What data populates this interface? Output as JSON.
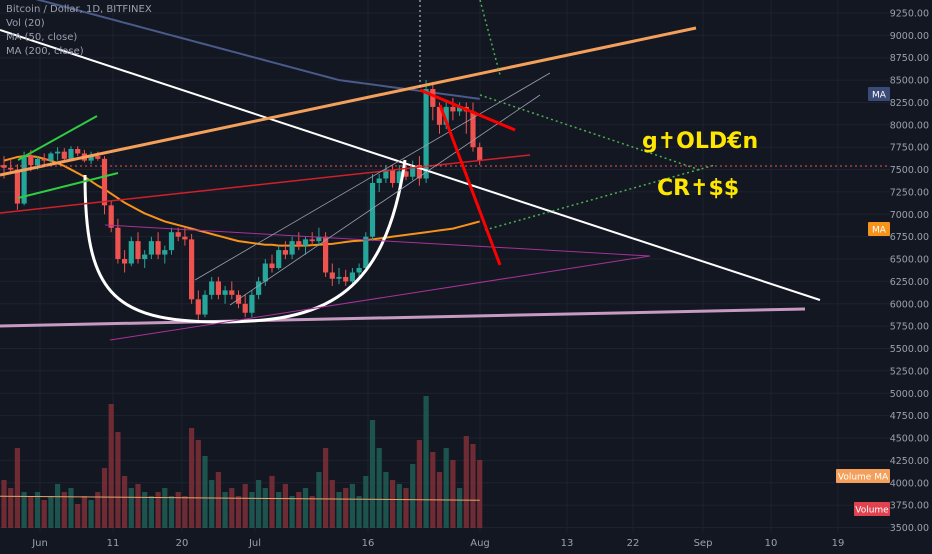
{
  "legend": {
    "symbol": "Bitcoin / Dollar, 1D, BITFINEX",
    "vol": "Vol (20)",
    "ma50": "MA (50, close)",
    "ma200": "MA (200, close)"
  },
  "annotations": {
    "golden_line1": "g✝OLD€n",
    "golden_line2": "CR✝$$"
  },
  "tags": {
    "ma200": "MA",
    "ma50": "MA",
    "volume_ma": "Volume MA",
    "volume": "Volume"
  },
  "colors": {
    "background": "#131722",
    "up": "#26a69a",
    "down": "#ef5350",
    "ma50": "#f7931a",
    "ma200": "#4a5a8a",
    "trend_white": "#ffffff",
    "trend_orange": "#f5a05a",
    "support_pink": "#c79ac2",
    "wedge_magenta": "#a8329a",
    "flag_red": "#ff0000",
    "dotted_green": "#4caf50",
    "annotation_yellow": "#ffe600"
  },
  "chart_data": {
    "type": "candlestick",
    "title": "Bitcoin / Dollar, 1D, BITFINEX",
    "y_axis": {
      "ticks": [
        3500,
        3750,
        4000,
        4250,
        4500,
        4750,
        5000,
        5250,
        5500,
        5750,
        6000,
        6250,
        6500,
        6750,
        7000,
        7250,
        7500,
        7750,
        8000,
        8250,
        8500,
        8750,
        9000,
        9250
      ],
      "range": [
        3450,
        9350
      ]
    },
    "x_axis": {
      "tick_labels": [
        "Jun",
        "11",
        "20",
        "Jul",
        "16",
        "Aug",
        "13",
        "22",
        "Sep",
        "10",
        "19"
      ]
    },
    "candles": [
      {
        "o": 7550,
        "h": 7650,
        "l": 7400,
        "c": 7520
      },
      {
        "o": 7520,
        "h": 7620,
        "l": 7450,
        "c": 7500
      },
      {
        "o": 7500,
        "h": 7560,
        "l": 7050,
        "c": 7120
      },
      {
        "o": 7120,
        "h": 7700,
        "l": 7100,
        "c": 7650
      },
      {
        "o": 7650,
        "h": 7720,
        "l": 7480,
        "c": 7550
      },
      {
        "o": 7550,
        "h": 7650,
        "l": 7500,
        "c": 7620
      },
      {
        "o": 7620,
        "h": 7680,
        "l": 7560,
        "c": 7600
      },
      {
        "o": 7600,
        "h": 7700,
        "l": 7580,
        "c": 7680
      },
      {
        "o": 7680,
        "h": 7750,
        "l": 7600,
        "c": 7700
      },
      {
        "o": 7700,
        "h": 7740,
        "l": 7580,
        "c": 7620
      },
      {
        "o": 7620,
        "h": 7760,
        "l": 7600,
        "c": 7730
      },
      {
        "o": 7730,
        "h": 7760,
        "l": 7650,
        "c": 7680
      },
      {
        "o": 7680,
        "h": 7720,
        "l": 7580,
        "c": 7600
      },
      {
        "o": 7600,
        "h": 7700,
        "l": 7560,
        "c": 7650
      },
      {
        "o": 7650,
        "h": 7700,
        "l": 7600,
        "c": 7620
      },
      {
        "o": 7620,
        "h": 7650,
        "l": 7000,
        "c": 7100
      },
      {
        "o": 7100,
        "h": 7150,
        "l": 6800,
        "c": 6850
      },
      {
        "o": 6850,
        "h": 6950,
        "l": 6450,
        "c": 6500
      },
      {
        "o": 6500,
        "h": 6600,
        "l": 6350,
        "c": 6450
      },
      {
        "o": 6450,
        "h": 6750,
        "l": 6420,
        "c": 6700
      },
      {
        "o": 6700,
        "h": 6800,
        "l": 6450,
        "c": 6500
      },
      {
        "o": 6500,
        "h": 6600,
        "l": 6400,
        "c": 6550
      },
      {
        "o": 6550,
        "h": 6750,
        "l": 6500,
        "c": 6700
      },
      {
        "o": 6700,
        "h": 6800,
        "l": 6500,
        "c": 6550
      },
      {
        "o": 6550,
        "h": 6650,
        "l": 6450,
        "c": 6600
      },
      {
        "o": 6600,
        "h": 6850,
        "l": 6550,
        "c": 6800
      },
      {
        "o": 6800,
        "h": 6850,
        "l": 6700,
        "c": 6750
      },
      {
        "o": 6750,
        "h": 6850,
        "l": 6650,
        "c": 6720
      },
      {
        "o": 6720,
        "h": 6780,
        "l": 6000,
        "c": 6050
      },
      {
        "o": 6050,
        "h": 6150,
        "l": 5780,
        "c": 5880
      },
      {
        "o": 5880,
        "h": 6150,
        "l": 5850,
        "c": 6100
      },
      {
        "o": 6100,
        "h": 6300,
        "l": 6050,
        "c": 6250
      },
      {
        "o": 6250,
        "h": 6300,
        "l": 6050,
        "c": 6100
      },
      {
        "o": 6100,
        "h": 6200,
        "l": 6000,
        "c": 6150
      },
      {
        "o": 6150,
        "h": 6250,
        "l": 6050,
        "c": 6100
      },
      {
        "o": 6100,
        "h": 6150,
        "l": 5950,
        "c": 6000
      },
      {
        "o": 6000,
        "h": 6100,
        "l": 5850,
        "c": 5900
      },
      {
        "o": 5900,
        "h": 6150,
        "l": 5850,
        "c": 6100
      },
      {
        "o": 6100,
        "h": 6300,
        "l": 6050,
        "c": 6250
      },
      {
        "o": 6250,
        "h": 6500,
        "l": 6200,
        "c": 6450
      },
      {
        "o": 6450,
        "h": 6550,
        "l": 6350,
        "c": 6400
      },
      {
        "o": 6400,
        "h": 6650,
        "l": 6380,
        "c": 6600
      },
      {
        "o": 6600,
        "h": 6700,
        "l": 6500,
        "c": 6550
      },
      {
        "o": 6550,
        "h": 6750,
        "l": 6500,
        "c": 6700
      },
      {
        "o": 6700,
        "h": 6800,
        "l": 6600,
        "c": 6650
      },
      {
        "o": 6650,
        "h": 6750,
        "l": 6550,
        "c": 6720
      },
      {
        "o": 6720,
        "h": 6800,
        "l": 6650,
        "c": 6700
      },
      {
        "o": 6700,
        "h": 6850,
        "l": 6650,
        "c": 6750
      },
      {
        "o": 6750,
        "h": 6800,
        "l": 6300,
        "c": 6350
      },
      {
        "o": 6350,
        "h": 6450,
        "l": 6200,
        "c": 6280
      },
      {
        "o": 6280,
        "h": 6400,
        "l": 6220,
        "c": 6300
      },
      {
        "o": 6300,
        "h": 6380,
        "l": 6200,
        "c": 6250
      },
      {
        "o": 6250,
        "h": 6400,
        "l": 6230,
        "c": 6350
      },
      {
        "o": 6350,
        "h": 6450,
        "l": 6300,
        "c": 6400
      },
      {
        "o": 6400,
        "h": 6800,
        "l": 6380,
        "c": 6750
      },
      {
        "o": 6750,
        "h": 7450,
        "l": 6700,
        "c": 7350
      },
      {
        "o": 7350,
        "h": 7450,
        "l": 7250,
        "c": 7400
      },
      {
        "o": 7400,
        "h": 7550,
        "l": 7350,
        "c": 7500
      },
      {
        "o": 7500,
        "h": 7550,
        "l": 7300,
        "c": 7350
      },
      {
        "o": 7350,
        "h": 7550,
        "l": 7300,
        "c": 7480
      },
      {
        "o": 7480,
        "h": 7550,
        "l": 7380,
        "c": 7420
      },
      {
        "o": 7420,
        "h": 7600,
        "l": 7380,
        "c": 7550
      },
      {
        "o": 7550,
        "h": 7650,
        "l": 7320,
        "c": 7400
      },
      {
        "o": 7400,
        "h": 8500,
        "l": 7350,
        "c": 8400
      },
      {
        "o": 8400,
        "h": 8480,
        "l": 8050,
        "c": 8200
      },
      {
        "o": 8200,
        "h": 8250,
        "l": 7900,
        "c": 8000
      },
      {
        "o": 8000,
        "h": 8280,
        "l": 7950,
        "c": 8200
      },
      {
        "o": 8200,
        "h": 8300,
        "l": 8050,
        "c": 8150
      },
      {
        "o": 8150,
        "h": 8250,
        "l": 8100,
        "c": 8200
      },
      {
        "o": 8200,
        "h": 8250,
        "l": 7900,
        "c": 8150
      },
      {
        "o": 8150,
        "h": 8250,
        "l": 7700,
        "c": 7750
      },
      {
        "o": 7750,
        "h": 7800,
        "l": 7550,
        "c": 7600
      }
    ],
    "volume": [
      12,
      10,
      20,
      9,
      8,
      9,
      7,
      8,
      11,
      9,
      10,
      6,
      8,
      7,
      9,
      15,
      31,
      24,
      13,
      10,
      11,
      9,
      8,
      9,
      10,
      8,
      9,
      8,
      25,
      22,
      18,
      12,
      14,
      9,
      10,
      8,
      11,
      9,
      12,
      10,
      13,
      9,
      11,
      8,
      9,
      10,
      8,
      14,
      20,
      12,
      9,
      10,
      11,
      8,
      13,
      27,
      20,
      14,
      12,
      11,
      10,
      16,
      22,
      33,
      19,
      14,
      20,
      17,
      10,
      23,
      21,
      17
    ],
    "volume_ma_level": 3850,
    "ma50": [
      7600,
      7620,
      7640,
      7650,
      7650,
      7640,
      7620,
      7600,
      7570,
      7540,
      7500,
      7460,
      7420,
      7370,
      7320,
      7280,
      7230,
      7180,
      7130,
      7090,
      7050,
      7010,
      6980,
      6950,
      6920,
      6900,
      6880,
      6860,
      6840,
      6820,
      6800,
      6780,
      6760,
      6740,
      6720,
      6700,
      6690,
      6680,
      6670,
      6660,
      6660,
      6650,
      6650,
      6650,
      6650,
      6650,
      6655,
      6660,
      6665,
      6670,
      6680,
      6690,
      6700,
      6705,
      6710,
      6720,
      6730,
      6740,
      6750,
      6760,
      6770,
      6780,
      6790,
      6800,
      6810,
      6820,
      6830,
      6840,
      6860,
      6880,
      6900,
      6920
    ],
    "ma200": [
      9500,
      9480,
      9460,
      9440,
      9420,
      9400,
      9380,
      9360,
      9340,
      9320,
      9300,
      9280,
      9260,
      9240,
      9220,
      9200,
      9180,
      9160,
      9140,
      9120,
      9100,
      9080,
      9060,
      9040,
      9020,
      9000,
      8980,
      8960,
      8940,
      8920,
      8900,
      8880,
      8860,
      8840,
      8820,
      8800,
      8780,
      8760,
      8740,
      8720,
      8700,
      8680,
      8660,
      8640,
      8620,
      8600,
      8580,
      8560,
      8540,
      8520,
      8500,
      8490,
      8480,
      8470,
      8460,
      8450,
      8440,
      8430,
      8420,
      8410,
      8400,
      8390,
      8380,
      8370,
      8360,
      8350,
      8340,
      8330,
      8320,
      8310,
      8300,
      8290
    ]
  }
}
